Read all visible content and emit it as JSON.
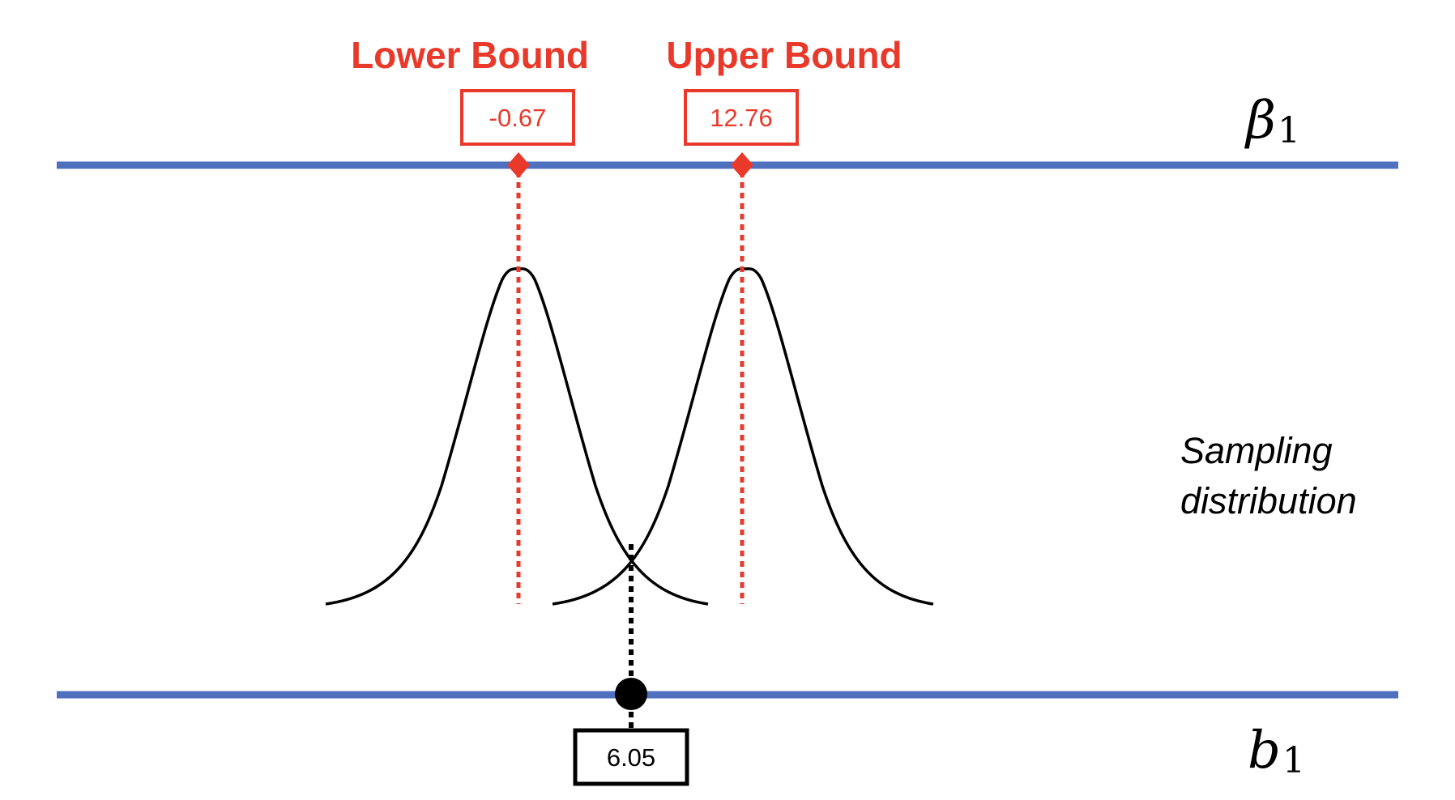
{
  "diagram": {
    "parameter_axis": {
      "symbol": "β",
      "subscript": "1"
    },
    "statistic_axis": {
      "symbol": "b",
      "subscript": "1"
    },
    "lower_bound": {
      "title": "Lower Bound",
      "value": "-0.67"
    },
    "upper_bound": {
      "title": "Upper Bound",
      "value": "12.76"
    },
    "sample_estimate": {
      "value": "6.05"
    },
    "distribution_label": {
      "line1": "Sampling",
      "line2": "distribution"
    }
  },
  "colors": {
    "axis": "#4f6fbf",
    "bound": "#e8392b",
    "estimate": "#000000",
    "curve": "#000000"
  }
}
